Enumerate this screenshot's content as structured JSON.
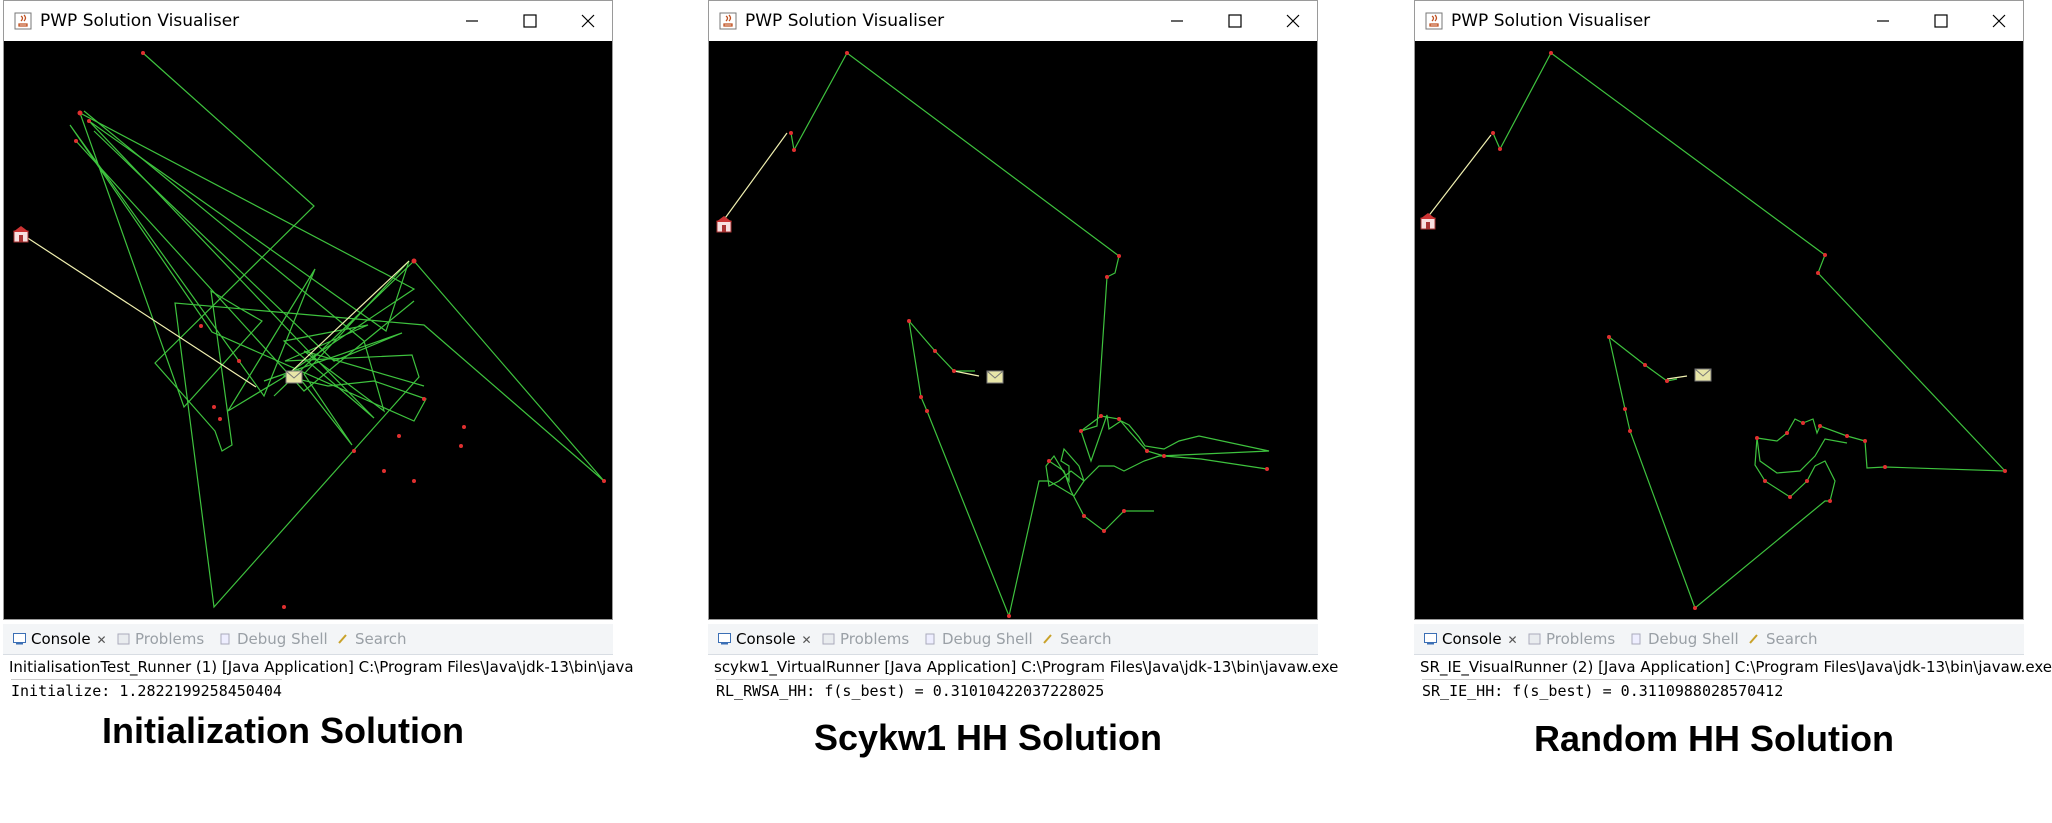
{
  "window_title": "PWP Solution Visualiser",
  "tabs": {
    "console": "Console",
    "problems": "Problems",
    "debug_shell": "Debug Shell",
    "search": "Search"
  },
  "panels": [
    {
      "launch_line": "InitialisationTest_Runner (1) [Java Application] C:\\Program Files\\Java\\jdk-13\\bin\\java",
      "output_line": "Initialize: 1.2822199258450404",
      "caption": "Initialization Solution"
    },
    {
      "launch_line": "scykw1_VirtualRunner [Java Application] C:\\Program Files\\Java\\jdk-13\\bin\\javaw.exe",
      "output_line": "RL_RWSA_HH: f(s_best) = 0.31010422037228025",
      "caption": "Scykw1 HH Solution"
    },
    {
      "launch_line": "SR_IE_VisualRunner (2) [Java Application] C:\\Program Files\\Java\\jdk-13\\bin\\javaw.exe",
      "output_line": "SR_IE_HH: f(s_best) = 0.3110988028570412",
      "caption": "Random HH Solution"
    }
  ],
  "colors": {
    "route": "#3ec23e",
    "depot_link": "#f0f0b0",
    "node": "#e03030",
    "canvas": "#000000"
  },
  "icons": {
    "depot": "depot-house-icon",
    "delivery": "delivery-mail-icon",
    "app": "java-app-icon"
  }
}
